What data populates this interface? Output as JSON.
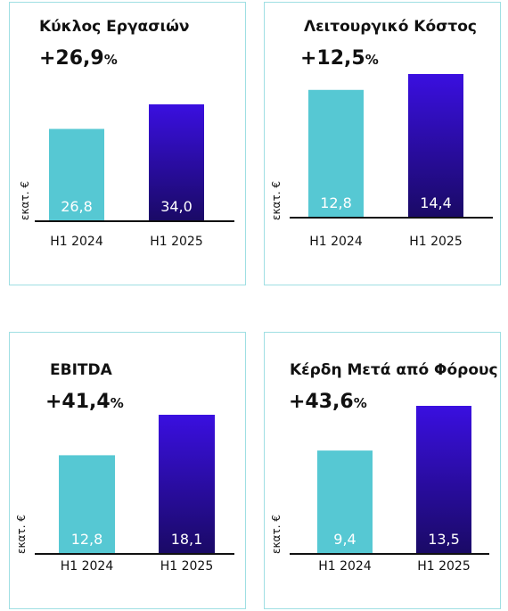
{
  "unit_label": "εκατ. €",
  "colors": {
    "h1_2024": "#56c8d3",
    "h1_2025_top": "#3a0fe0",
    "h1_2025_bottom": "#1a0a66",
    "panel_border": "#9fdfe3"
  },
  "chart_data": [
    {
      "type": "bar",
      "title": "Κύκλος Εργασιών",
      "change": "+26,9",
      "change_unit": "%",
      "categories": [
        "H1 2024",
        "H1 2025"
      ],
      "values": [
        26.8,
        34.0
      ],
      "value_labels": [
        "26,8",
        "34,0"
      ],
      "ylabel": "εκατ. €"
    },
    {
      "type": "bar",
      "title": "Λειτουργικό Κόστος",
      "change": "+12,5",
      "change_unit": "%",
      "categories": [
        "H1 2024",
        "H1 2025"
      ],
      "values": [
        12.8,
        14.4
      ],
      "value_labels": [
        "12,8",
        "14,4"
      ],
      "ylabel": "εκατ. €"
    },
    {
      "type": "bar",
      "title": "EBITDA",
      "change": "+41,4",
      "change_unit": "%",
      "categories": [
        "H1 2024",
        "H1 2025"
      ],
      "values": [
        12.8,
        18.1
      ],
      "value_labels": [
        "12,8",
        "18,1"
      ],
      "ylabel": "εκατ. €"
    },
    {
      "type": "bar",
      "title": "Κέρδη Μετά από Φόρους",
      "change": "+43,6",
      "change_unit": "%",
      "categories": [
        "H1 2024",
        "H1 2025"
      ],
      "values": [
        9.4,
        13.5
      ],
      "value_labels": [
        "9,4",
        "13,5"
      ],
      "ylabel": "εκατ. €"
    }
  ]
}
